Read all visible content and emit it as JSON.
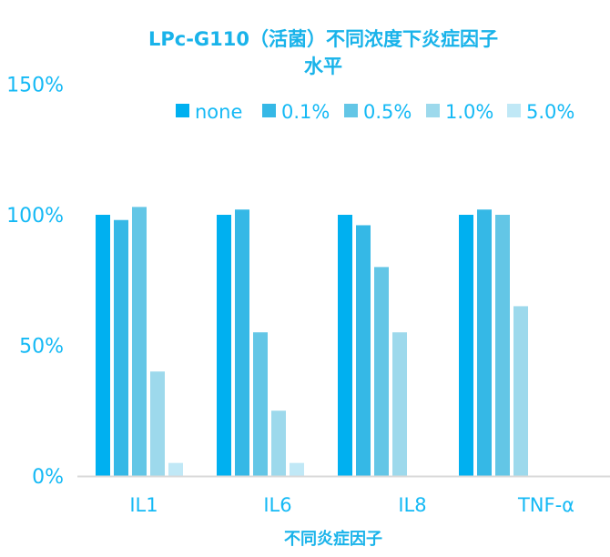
{
  "chart_data": {
    "type": "bar",
    "title_lines": [
      "LPc-G110（活菌）不同浓度下炎症因子",
      "水平"
    ],
    "xlabel": "不同炎症因子",
    "ylabel": "",
    "categories": [
      "IL1",
      "IL6",
      "IL8",
      "TNF-α"
    ],
    "ylim": [
      0,
      150
    ],
    "y_ticks": [
      "0%",
      "50%",
      "100%",
      "150%"
    ],
    "y_tick_values": [
      0,
      50,
      100,
      150
    ],
    "legend_position": "top-right",
    "grid": false,
    "series": [
      {
        "name": "none",
        "color": "#00b0f0",
        "values": [
          100,
          100,
          100,
          100
        ]
      },
      {
        "name": "0.1%",
        "color": "#35b8e6",
        "values": [
          98,
          102,
          96,
          102
        ]
      },
      {
        "name": "0.5%",
        "color": "#63c6e6",
        "values": [
          103,
          55,
          80,
          100
        ]
      },
      {
        "name": "1.0%",
        "color": "#9dd9ec",
        "values": [
          40,
          25,
          55,
          65
        ]
      },
      {
        "name": "5.0%",
        "color": "#c0e8f6",
        "values": [
          5,
          5,
          null,
          null
        ]
      }
    ]
  }
}
